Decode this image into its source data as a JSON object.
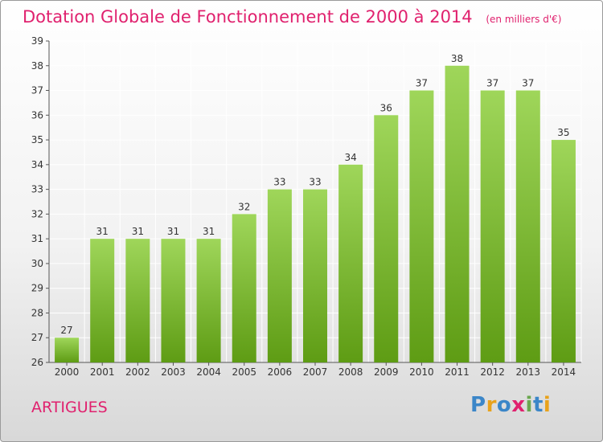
{
  "title": "Dotation Globale de Fonctionnement de 2000 à 2014",
  "subtitle": "(en milliers d'€)",
  "commune": "ARTIGUES",
  "logo": {
    "text": "Proxiti",
    "colors": [
      "#3b86c8",
      "#e8a21b",
      "#3b86c8",
      "#e0216e",
      "#6aa84f",
      "#3b86c8",
      "#e8a21b"
    ]
  },
  "colors": {
    "bar_light": "#9fd65a",
    "bar_dark": "#5e9c14",
    "title": "#e0216e",
    "grid": "#ffffff",
    "axis": "#555555"
  },
  "chart_data": {
    "type": "bar",
    "categories": [
      "2000",
      "2001",
      "2002",
      "2003",
      "2004",
      "2005",
      "2006",
      "2007",
      "2008",
      "2009",
      "2010",
      "2011",
      "2012",
      "2013",
      "2014"
    ],
    "values": [
      27,
      31,
      31,
      31,
      31,
      32,
      33,
      33,
      34,
      36,
      37,
      38,
      37,
      37,
      35
    ],
    "ylim": [
      26,
      39
    ],
    "yticks": [
      26,
      27,
      28,
      29,
      30,
      31,
      32,
      33,
      34,
      35,
      36,
      37,
      38,
      39
    ],
    "grid": true,
    "legend": "none"
  }
}
